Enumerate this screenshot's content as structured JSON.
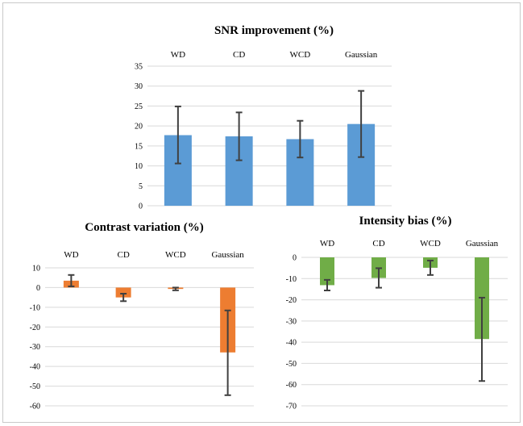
{
  "chart_data": [
    {
      "type": "bar",
      "title": "SNR improvement (%)",
      "categories": [
        "WD",
        "CD",
        "WCD",
        "Gaussian"
      ],
      "values": [
        17.7,
        17.4,
        16.7,
        20.5
      ],
      "error_low": [
        10.6,
        11.4,
        12.1,
        12.2
      ],
      "error_high": [
        24.9,
        23.4,
        21.3,
        28.8
      ],
      "yticks": [
        35,
        30,
        25,
        20,
        15,
        10,
        5,
        0
      ],
      "ylim": [
        0,
        35
      ],
      "color": "#5b9bd5",
      "category_labels_position": "top",
      "grid": true
    },
    {
      "type": "bar",
      "title": "Contrast variation (%)",
      "categories": [
        "WD",
        "CD",
        "WCD",
        "Gaussian"
      ],
      "values": [
        3.5,
        -5.0,
        -0.7,
        -32.9
      ],
      "error_low": [
        0.6,
        -6.9,
        -1.4,
        -54.6
      ],
      "error_high": [
        6.4,
        -3.1,
        0.0,
        -11.6
      ],
      "yticks": [
        10,
        0,
        -10,
        -20,
        -30,
        -40,
        -50,
        -60
      ],
      "ylim": [
        -60,
        10
      ],
      "color": "#ed7d31",
      "category_labels_position": "top",
      "grid": true
    },
    {
      "type": "bar",
      "title": "Intensity bias (%)",
      "categories": [
        "WD",
        "CD",
        "WCD",
        "Gaussian"
      ],
      "values": [
        -13.1,
        -9.7,
        -4.9,
        -38.5
      ],
      "error_low": [
        -15.6,
        -14.3,
        -8.3,
        -58.3
      ],
      "error_high": [
        -10.6,
        -5.1,
        -1.5,
        -19.0
      ],
      "yticks": [
        0,
        -10,
        -20,
        -30,
        -40,
        -50,
        -60,
        -70
      ],
      "ylim": [
        -70,
        0
      ],
      "color": "#70ad47",
      "category_labels_position": "top",
      "grid": true
    }
  ]
}
